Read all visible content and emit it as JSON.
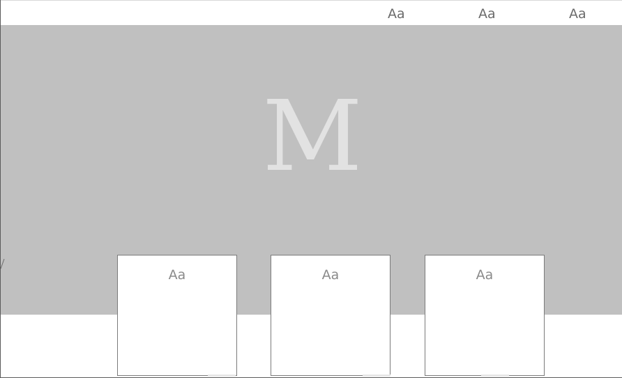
{
  "header": {
    "nav_items": [
      {
        "label": "Aa"
      },
      {
        "label": "Aa"
      },
      {
        "label": "Aa"
      }
    ]
  },
  "hero": {
    "logo_text": "M",
    "background_color": "#c0c0c0",
    "logo_color": "#e2e2e2"
  },
  "cards": [
    {
      "label": "Aa"
    },
    {
      "label": "Aa"
    },
    {
      "label": "Aa"
    }
  ]
}
